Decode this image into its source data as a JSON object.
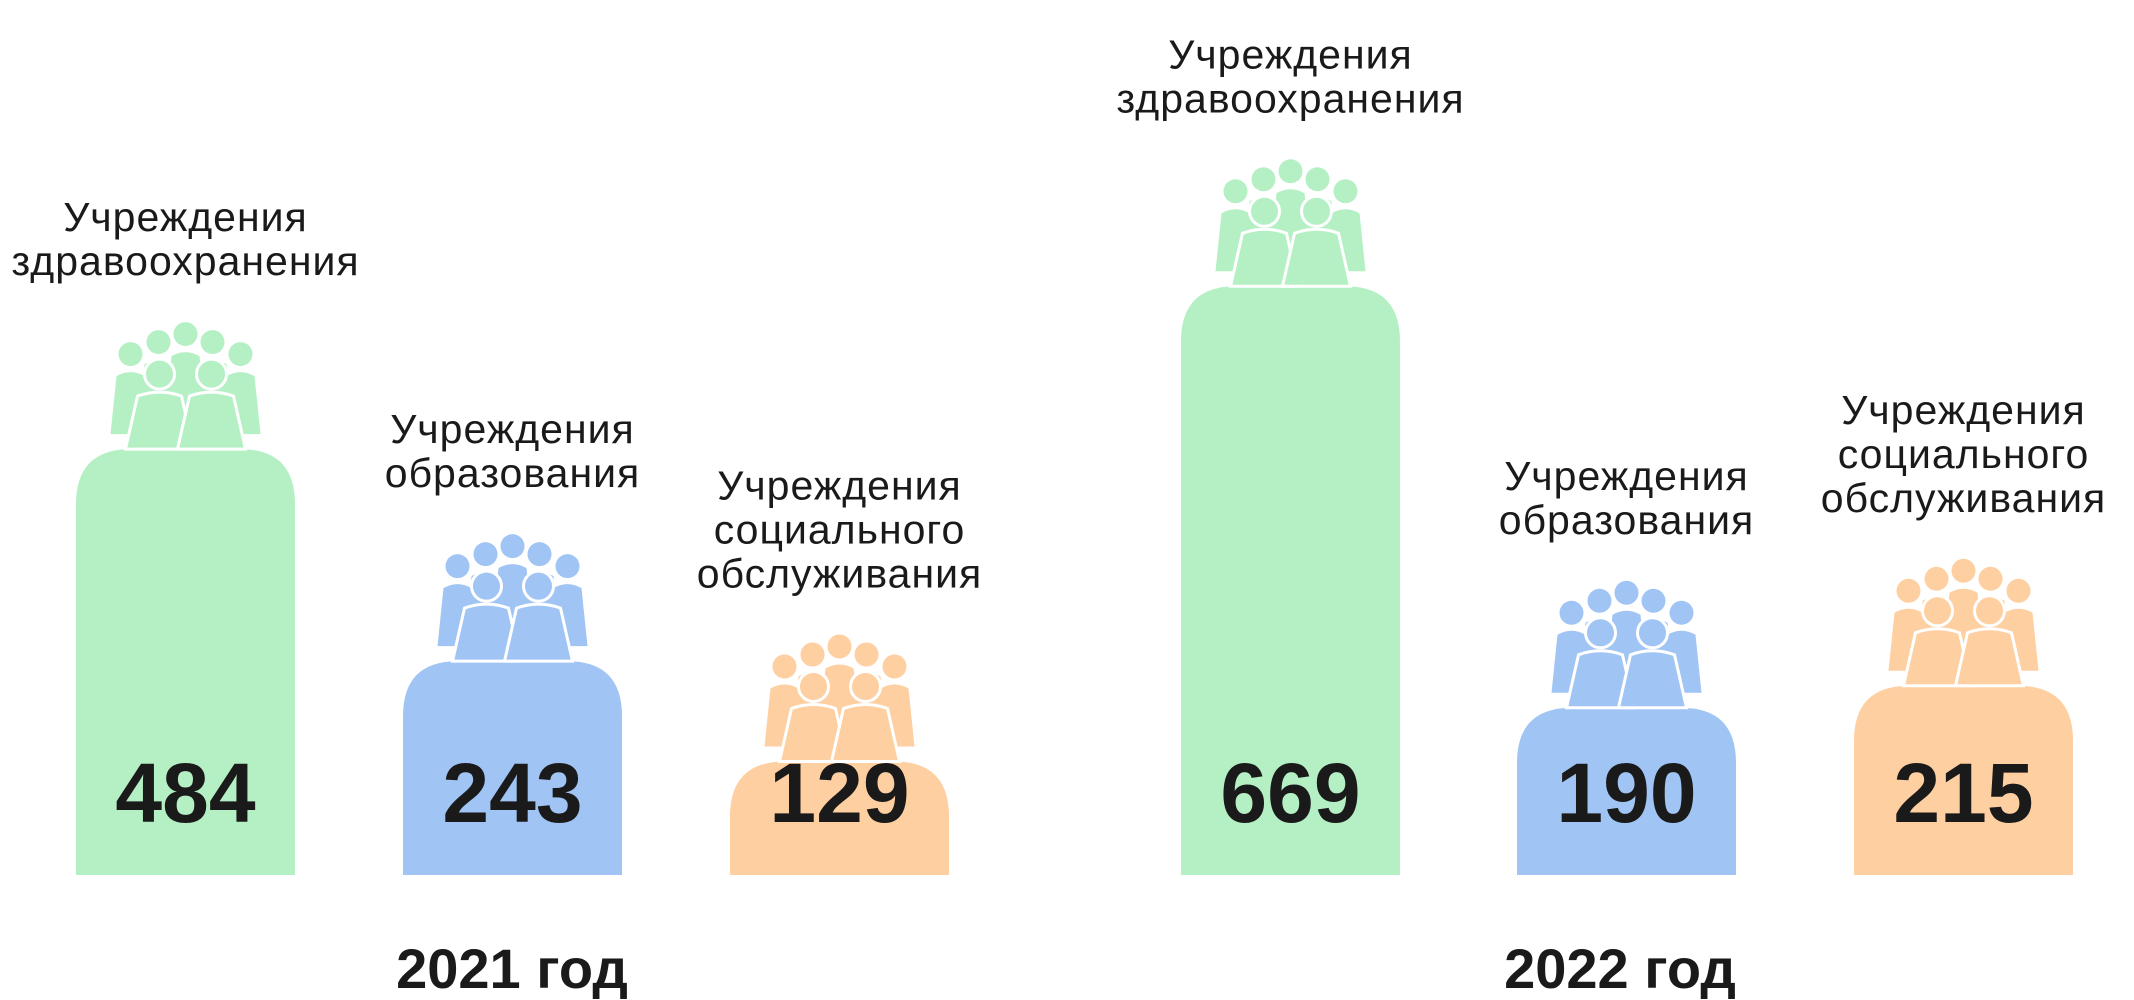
{
  "chart_data": {
    "type": "bar",
    "categories": [
      "2021 год",
      "2022 год"
    ],
    "series": [
      {
        "name": "Учреждения здравоохранения",
        "color": "#b5f0c5",
        "values": [
          484,
          669
        ]
      },
      {
        "name": "Учреждения образования",
        "color": "#a0c4f4",
        "values": [
          243,
          190
        ]
      },
      {
        "name": "Учреждения социального обслуживания",
        "color": "#fecfa0",
        "values": [
          129,
          215
        ]
      }
    ]
  }
}
